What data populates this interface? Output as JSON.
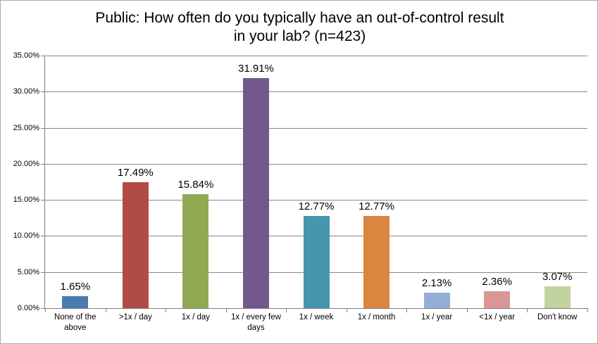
{
  "window": {
    "background": "#ffffff",
    "border_color": "#ababab"
  },
  "chart_data": {
    "type": "bar",
    "title": "Public: How often do you typically have an out-of-control result in your lab? (n=423)",
    "title_lines": [
      "Public: How often do you typically have an out-of-control result",
      "in your lab? (n=423)"
    ],
    "n": 423,
    "categories": [
      "None of the above",
      ">1x / day",
      "1x  / day",
      "1x / every few days",
      "1x /  week",
      "1x / month",
      "1x / year",
      "<1x / year",
      "Don't know"
    ],
    "values": [
      1.65,
      17.49,
      15.84,
      31.91,
      12.77,
      12.77,
      2.13,
      2.36,
      3.07
    ],
    "value_labels": [
      "1.65%",
      "17.49%",
      "15.84%",
      "31.91%",
      "12.77%",
      "12.77%",
      "2.13%",
      "2.36%",
      "3.07%"
    ],
    "bar_colors": [
      "#4a7ab0",
      "#b04b47",
      "#92a953",
      "#71598e",
      "#4497af",
      "#da8540",
      "#94afd7",
      "#d89795",
      "#c2d49e"
    ],
    "xlabel": "",
    "ylabel": "",
    "ylim": [
      0,
      35
    ],
    "ytick_values": [
      0,
      5,
      10,
      15,
      20,
      25,
      30,
      35
    ],
    "ytick_labels": [
      "0.00%",
      "5.00%",
      "10.00%",
      "15.00%",
      "20.00%",
      "25.00%",
      "30.00%",
      "35.00%"
    ],
    "grid": true,
    "gridline_color": "#878787",
    "axis_color": "#7f7f7f",
    "legend_position": "none"
  }
}
